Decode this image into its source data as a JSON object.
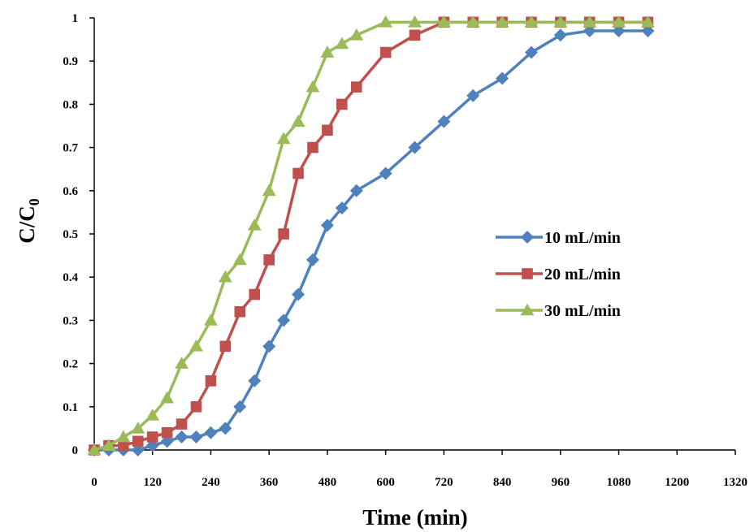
{
  "chart_data": {
    "type": "line",
    "xlabel": "Time (min)",
    "ylabel_main": "C/C",
    "ylabel_sub": "0",
    "xlim": [
      0,
      1320
    ],
    "ylim": [
      0,
      1
    ],
    "xticks": [
      0,
      120,
      240,
      360,
      480,
      600,
      720,
      840,
      960,
      1080,
      1200,
      1320
    ],
    "yticks": [
      0,
      0.1,
      0.2,
      0.3,
      0.4,
      0.5,
      0.6,
      0.7,
      0.8,
      0.9,
      1
    ],
    "ytick_labels": [
      "0",
      "0.1",
      "0.2",
      "0.3",
      "0.4",
      "0.5",
      "0.6",
      "0.7",
      "0.8",
      "0.9",
      "1"
    ],
    "grid": false,
    "legend_position": "right",
    "series": [
      {
        "name": "10 mL/min",
        "color": "#4f81bd",
        "marker": "diamond",
        "x": [
          0,
          30,
          60,
          90,
          120,
          150,
          180,
          210,
          240,
          270,
          300,
          330,
          360,
          390,
          420,
          450,
          480,
          510,
          540,
          600,
          660,
          720,
          780,
          840,
          900,
          960,
          1020,
          1080,
          1140
        ],
        "y": [
          0,
          0,
          0,
          0,
          0.01,
          0.02,
          0.03,
          0.03,
          0.04,
          0.05,
          0.1,
          0.16,
          0.24,
          0.3,
          0.36,
          0.44,
          0.52,
          0.56,
          0.6,
          0.64,
          0.7,
          0.76,
          0.82,
          0.86,
          0.92,
          0.96,
          0.97,
          0.97,
          0.97
        ]
      },
      {
        "name": "20 mL/min",
        "color": "#c0504d",
        "marker": "square",
        "x": [
          0,
          30,
          60,
          90,
          120,
          150,
          180,
          210,
          240,
          270,
          300,
          330,
          360,
          390,
          420,
          450,
          480,
          510,
          540,
          600,
          660,
          720,
          780,
          840,
          900,
          960,
          1020,
          1080,
          1140
        ],
        "y": [
          0,
          0.01,
          0.01,
          0.02,
          0.03,
          0.04,
          0.06,
          0.1,
          0.16,
          0.24,
          0.32,
          0.36,
          0.44,
          0.5,
          0.64,
          0.7,
          0.74,
          0.8,
          0.84,
          0.92,
          0.96,
          0.99,
          0.99,
          0.99,
          0.99,
          0.99,
          0.99,
          0.99,
          0.99
        ]
      },
      {
        "name": "30 mL/min",
        "color": "#9bbb59",
        "marker": "triangle",
        "x": [
          0,
          30,
          60,
          90,
          120,
          150,
          180,
          210,
          240,
          270,
          300,
          330,
          360,
          390,
          420,
          450,
          480,
          510,
          540,
          600,
          660,
          720,
          780,
          840,
          900,
          960,
          1020,
          1080,
          1140
        ],
        "y": [
          0,
          0.01,
          0.03,
          0.05,
          0.08,
          0.12,
          0.2,
          0.24,
          0.3,
          0.4,
          0.44,
          0.52,
          0.6,
          0.72,
          0.76,
          0.84,
          0.92,
          0.94,
          0.96,
          0.99,
          0.99,
          0.99,
          0.99,
          0.99,
          0.99,
          0.99,
          0.99,
          0.99,
          0.99
        ]
      }
    ]
  }
}
